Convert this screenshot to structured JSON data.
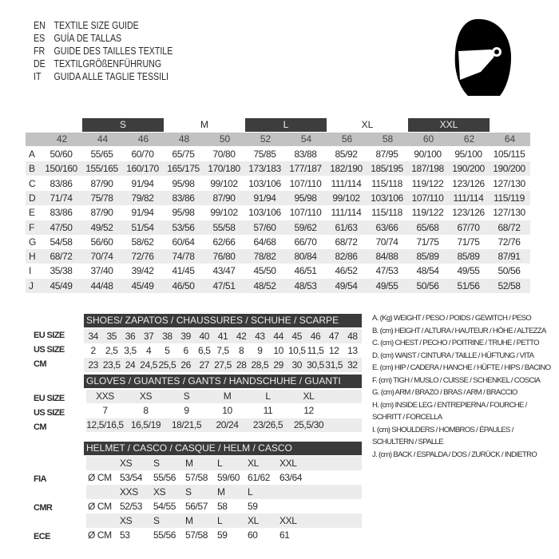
{
  "titles": [
    {
      "code": "EN",
      "text": "TEXTILE SIZE GUIDE"
    },
    {
      "code": "ES",
      "text": "GUÍA DE TALLAS"
    },
    {
      "code": "FR",
      "text": "GUIDE DES TAILLES TEXTILE"
    },
    {
      "code": "DE",
      "text": "TEXTILGRÖßENFÜHRUNG"
    },
    {
      "code": "IT",
      "text": "GUIDA ALLE TAGLIE TESSILI"
    }
  ],
  "icon": "helmet-icon",
  "textile": {
    "size_bands": [
      {
        "label": "S",
        "dark": true
      },
      {
        "label": "M",
        "dark": false
      },
      {
        "label": "L",
        "dark": true
      },
      {
        "label": "XL",
        "dark": false
      },
      {
        "label": "XXL",
        "dark": true
      }
    ],
    "columns": [
      "42",
      "44",
      "46",
      "48",
      "50",
      "52",
      "54",
      "56",
      "58",
      "60",
      "62",
      "64"
    ],
    "rows": [
      {
        "key": "A",
        "values": [
          "50/60",
          "55/65",
          "60/70",
          "65/75",
          "70/80",
          "75/85",
          "83/88",
          "85/92",
          "87/95",
          "90/100",
          "95/100",
          "105/115"
        ]
      },
      {
        "key": "B",
        "values": [
          "150/160",
          "155/165",
          "160/170",
          "165/175",
          "170/180",
          "173/183",
          "177/187",
          "182/190",
          "185/195",
          "187/198",
          "190/200",
          "190/200"
        ]
      },
      {
        "key": "C",
        "values": [
          "83/86",
          "87/90",
          "91/94",
          "95/98",
          "99/102",
          "103/106",
          "107/110",
          "111/114",
          "115/118",
          "119/122",
          "123/126",
          "127/130"
        ]
      },
      {
        "key": "D",
        "values": [
          "71/74",
          "75/78",
          "79/82",
          "83/86",
          "87/90",
          "91/94",
          "95/98",
          "99/102",
          "103/106",
          "107/110",
          "111/114",
          "115/119"
        ]
      },
      {
        "key": "E",
        "values": [
          "83/86",
          "87/90",
          "91/94",
          "95/98",
          "99/102",
          "103/106",
          "107/110",
          "111/114",
          "115/118",
          "119/122",
          "123/126",
          "127/130"
        ]
      },
      {
        "key": "F",
        "values": [
          "47/50",
          "49/52",
          "51/54",
          "53/56",
          "55/58",
          "57/60",
          "59/62",
          "61/63",
          "63/66",
          "65/68",
          "67/70",
          "68/72"
        ]
      },
      {
        "key": "G",
        "values": [
          "54/58",
          "56/60",
          "58/62",
          "60/64",
          "62/66",
          "64/68",
          "66/70",
          "68/72",
          "70/74",
          "71/75",
          "71/75",
          "72/76"
        ]
      },
      {
        "key": "H",
        "values": [
          "68/72",
          "70/74",
          "72/76",
          "74/78",
          "76/80",
          "78/82",
          "80/84",
          "82/86",
          "84/88",
          "85/89",
          "85/89",
          "87/91"
        ]
      },
      {
        "key": "I",
        "values": [
          "35/38",
          "37/40",
          "39/42",
          "41/45",
          "43/47",
          "45/50",
          "46/51",
          "46/52",
          "47/53",
          "48/54",
          "49/55",
          "50/56"
        ]
      },
      {
        "key": "J",
        "values": [
          "45/49",
          "44/48",
          "45/49",
          "46/50",
          "47/51",
          "48/52",
          "48/53",
          "49/54",
          "49/55",
          "50/56",
          "51/56",
          "52/58"
        ]
      }
    ]
  },
  "shoes": {
    "title": "SHOES/ ZAPATOS / CHAUSSURES / SCHUHE / SCARPE",
    "rows": [
      {
        "label": "EU SIZE",
        "values": [
          "34",
          "35",
          "36",
          "37",
          "38",
          "39",
          "40",
          "41",
          "42",
          "43",
          "44",
          "45",
          "46",
          "47",
          "48"
        ]
      },
      {
        "label": "US SIZE",
        "values": [
          "2",
          "2,5",
          "3,5",
          "4",
          "5",
          "6",
          "6,5",
          "7,5",
          "8",
          "9",
          "10",
          "10,5",
          "11,5",
          "12",
          "13"
        ]
      },
      {
        "label": "CM",
        "values": [
          "23",
          "23,5",
          "24",
          "24,5",
          "25,5",
          "26",
          "27",
          "27,5",
          "28",
          "28,5",
          "29",
          "30",
          "30,5",
          "31,5",
          "32"
        ]
      }
    ]
  },
  "gloves": {
    "title": "GLOVES / GUANTES / GANTS / HANDSCHUHE / GUANTI",
    "rows": [
      {
        "label": "EU SIZE",
        "values": [
          "XXS",
          "XS",
          "S",
          "M",
          "L",
          "XL"
        ]
      },
      {
        "label": "US SIZE",
        "values": [
          "7",
          "8",
          "9",
          "10",
          "11",
          "12"
        ]
      },
      {
        "label": "CM",
        "values": [
          "12,5/16,5",
          "16,5/19",
          "18/21,5",
          "20/24",
          "23/26,5",
          "25,5/30"
        ]
      }
    ]
  },
  "helmet": {
    "title": "HELMET / CASCO / CASQUE / HELM / CASCO",
    "unit": "Ø CM",
    "groups": [
      {
        "label": "FIA",
        "sizes": [
          "XS",
          "S",
          "M",
          "L",
          "XL",
          "XXL"
        ],
        "values": [
          "53/54",
          "55/56",
          "57/58",
          "59/60",
          "61/62",
          "63/64"
        ]
      },
      {
        "label": "CMR",
        "sizes": [
          "XXS",
          "XS",
          "S",
          "M",
          "L"
        ],
        "values": [
          "52/53",
          "54/55",
          "56/57",
          "58",
          "59"
        ]
      },
      {
        "label": "ECE",
        "sizes": [
          "XS",
          "S",
          "M",
          "L",
          "XL",
          "XXL"
        ],
        "values": [
          "53",
          "55/56",
          "57/58",
          "59",
          "60",
          "61"
        ]
      }
    ]
  },
  "legend": [
    "A. (Kg) WEIGHT / PESO / POIDS / GEWITCH / PESO",
    "B. (cm) HEIGHT / ALTURA / HAUTEUR / HÖHE / ALTEZZA",
    "C. (cm) CHEST / PECHO / POITRINE / TRUHE / PETTO",
    "D. (cm) WAIST / CINTURA / TAILLE / HÜFTUNG / VITA",
    "E. (cm) HIP / CADERA / HANCHE / HÜFTE / HIPS /  BACINO",
    "F.  (cm) TIGH / MUSLO / CUISSE / SCHENKEL / COSCIA",
    "G. (cm) ARM  / BRAZO / BRAS / ARM / BRACCIO",
    "H. (cm) INSIDE LEG / ENTREPIERNA / FOURCHE /",
    "SCHRITT / FORCELLA",
    "I.  (cm) SHOULDERS / HOMBROS / ÉPAULES /",
    "SCHULTERN / SPALLE",
    "J. (cm) BACK / ESPALDA / DOS / ZURÜCK / INDIETRO"
  ]
}
